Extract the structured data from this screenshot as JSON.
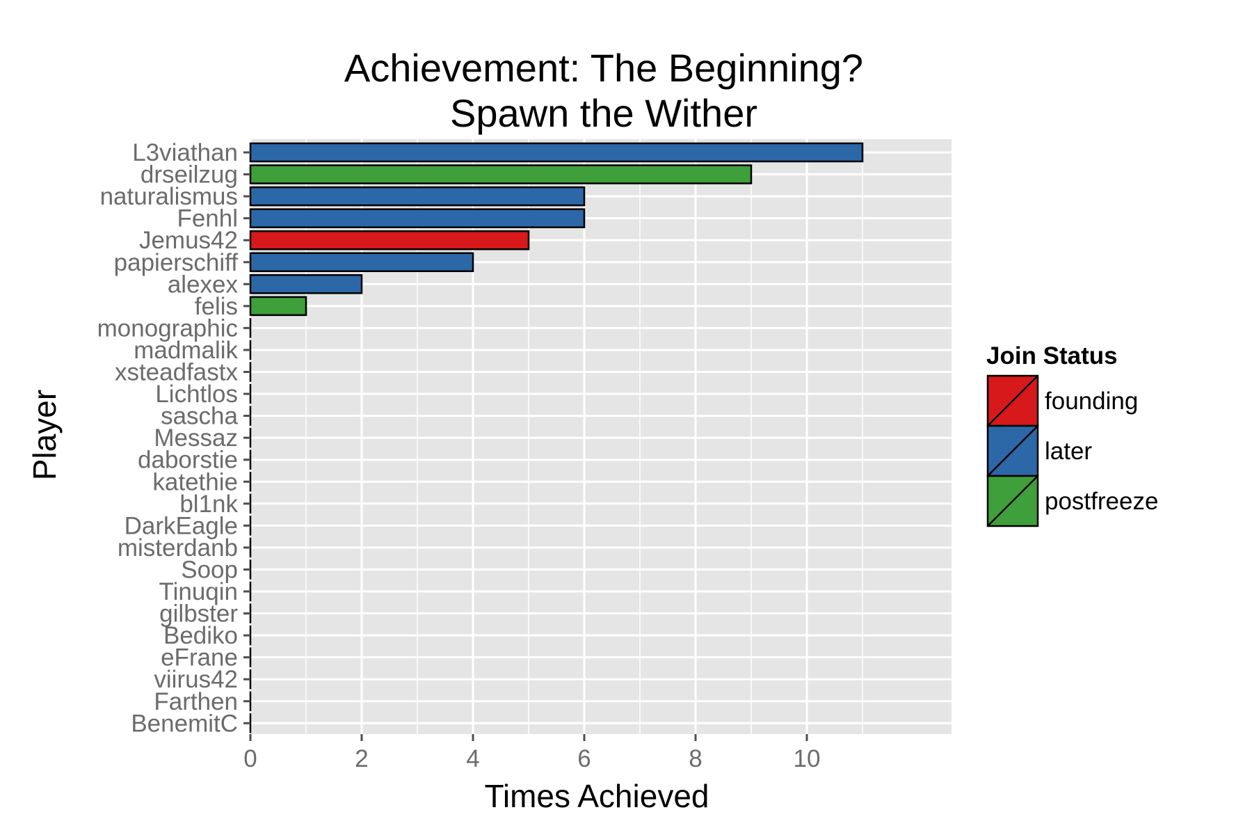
{
  "chart_data": {
    "type": "bar",
    "orientation": "horizontal",
    "title_lines": [
      "Achievement: The Beginning?",
      "Spawn the Wither"
    ],
    "xlabel": "Times Achieved",
    "ylabel": "Player",
    "xlim": [
      0,
      12.6
    ],
    "x_ticks": [
      0,
      2,
      4,
      6,
      8,
      10
    ],
    "x_tick_labels": [
      "0",
      "2",
      "4",
      "6",
      "8",
      "10"
    ],
    "grid": true,
    "legend": {
      "title": "Join Status",
      "position": "right",
      "entries": [
        {
          "name": "founding",
          "color": "#d7191c"
        },
        {
          "name": "later",
          "color": "#2c67a8"
        },
        {
          "name": "postfreeze",
          "color": "#3f9f3a"
        }
      ]
    },
    "categories": [
      "L3viathan",
      "drseilzug",
      "naturalismus",
      "Fenhl",
      "Jemus42",
      "papierschiff",
      "alexex",
      "felis",
      "monographic",
      "madmalik",
      "xsteadfastx",
      "Lichtlos",
      "sascha",
      "Messaz",
      "daborstie",
      "katethie",
      "bl1nk",
      "DarkEagle",
      "misterdanb",
      "Soop",
      "Tinuqin",
      "gilbster",
      "Bediko",
      "eFrane",
      "viirus42",
      "Farthen",
      "BenemitC"
    ],
    "values": [
      11,
      9,
      6,
      6,
      5,
      4,
      2,
      1,
      0,
      0,
      0,
      0,
      0,
      0,
      0,
      0,
      0,
      0,
      0,
      0,
      0,
      0,
      0,
      0,
      0,
      0,
      0
    ],
    "groups": [
      "later",
      "postfreeze",
      "later",
      "later",
      "founding",
      "later",
      "later",
      "postfreeze",
      "later",
      "later",
      "later",
      "later",
      "later",
      "later",
      "later",
      "later",
      "later",
      "later",
      "later",
      "later",
      "later",
      "later",
      "later",
      "later",
      "later",
      "later",
      "later"
    ]
  }
}
